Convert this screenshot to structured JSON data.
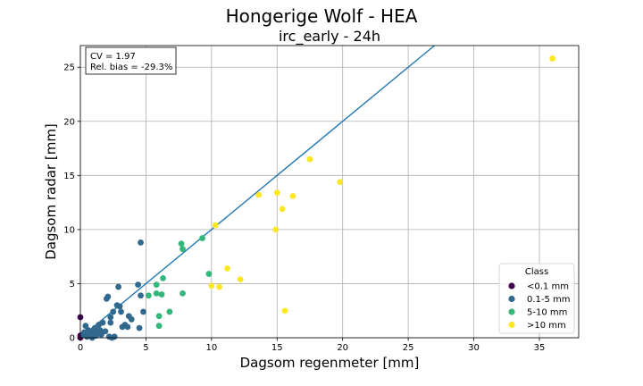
{
  "suptitle": "Hongerige Wolf - HEA",
  "chart_data": {
    "type": "scatter",
    "title": "irc_early - 24h",
    "xlabel": "Dagsom regenmeter [mm]",
    "ylabel": "Dagsom radar [mm]",
    "xlim": [
      0,
      38
    ],
    "ylim": [
      0,
      27
    ],
    "xticks": [
      0,
      5,
      10,
      15,
      20,
      25,
      30,
      35
    ],
    "yticks": [
      0,
      5,
      10,
      15,
      20,
      25
    ],
    "grid": true,
    "annotation": [
      "CV = 1.97",
      "Rel. bias = -29.3%"
    ],
    "reference_line": {
      "type": "1:1",
      "color": "#1f77b4"
    },
    "legend": {
      "title": "Class",
      "placement": "lower-right"
    },
    "series": [
      {
        "name": "<0.1 mm",
        "color": "#440154",
        "points": [
          [
            0.0,
            1.9
          ],
          [
            0.0,
            0.2
          ],
          [
            0.0,
            0.0
          ]
        ]
      },
      {
        "name": "0.1-5 mm",
        "color": "#31688e",
        "points": [
          [
            0.2,
            0.3
          ],
          [
            0.3,
            0.5
          ],
          [
            0.4,
            1.1
          ],
          [
            0.5,
            0.1
          ],
          [
            0.6,
            0.7
          ],
          [
            0.7,
            0.2
          ],
          [
            0.8,
            0.4
          ],
          [
            0.9,
            0.0
          ],
          [
            1.0,
            0.6
          ],
          [
            1.1,
            0.9
          ],
          [
            1.2,
            0.2
          ],
          [
            1.3,
            0.5
          ],
          [
            1.4,
            1.2
          ],
          [
            1.5,
            0.7
          ],
          [
            1.6,
            0.3
          ],
          [
            1.7,
            1.4
          ],
          [
            1.9,
            0.6
          ],
          [
            2.0,
            3.6
          ],
          [
            2.1,
            3.8
          ],
          [
            2.2,
            0.1
          ],
          [
            2.3,
            1.4
          ],
          [
            2.3,
            1.9
          ],
          [
            2.4,
            0.0
          ],
          [
            2.5,
            2.4
          ],
          [
            2.6,
            0.1
          ],
          [
            2.8,
            3.0
          ],
          [
            2.9,
            4.7
          ],
          [
            3.0,
            2.9
          ],
          [
            3.1,
            2.4
          ],
          [
            3.2,
            1.0
          ],
          [
            3.4,
            1.2
          ],
          [
            3.6,
            1.0
          ],
          [
            3.7,
            2.0
          ],
          [
            3.9,
            1.7
          ],
          [
            4.4,
            4.9
          ],
          [
            4.5,
            0.9
          ],
          [
            4.6,
            3.9
          ],
          [
            4.6,
            8.8
          ],
          [
            4.8,
            2.4
          ]
        ]
      },
      {
        "name": "5-10 mm",
        "color": "#35b779",
        "points": [
          [
            5.2,
            3.9
          ],
          [
            5.8,
            4.1
          ],
          [
            5.8,
            4.9
          ],
          [
            6.0,
            1.1
          ],
          [
            6.0,
            2.0
          ],
          [
            6.2,
            4.0
          ],
          [
            6.3,
            5.5
          ],
          [
            6.8,
            2.4
          ],
          [
            7.7,
            8.7
          ],
          [
            7.8,
            8.2
          ],
          [
            7.8,
            4.1
          ],
          [
            9.3,
            9.2
          ],
          [
            9.8,
            5.9
          ]
        ]
      },
      {
        "name": ">10 mm",
        "color": "#fde725",
        "points": [
          [
            10.0,
            4.8
          ],
          [
            10.3,
            10.4
          ],
          [
            10.6,
            4.7
          ],
          [
            11.2,
            6.4
          ],
          [
            12.2,
            5.4
          ],
          [
            13.6,
            13.2
          ],
          [
            14.9,
            10.0
          ],
          [
            15.0,
            13.4
          ],
          [
            15.4,
            11.9
          ],
          [
            15.6,
            2.5
          ],
          [
            16.2,
            13.1
          ],
          [
            17.5,
            16.5
          ],
          [
            19.8,
            14.4
          ],
          [
            36.0,
            25.8
          ]
        ]
      }
    ]
  }
}
